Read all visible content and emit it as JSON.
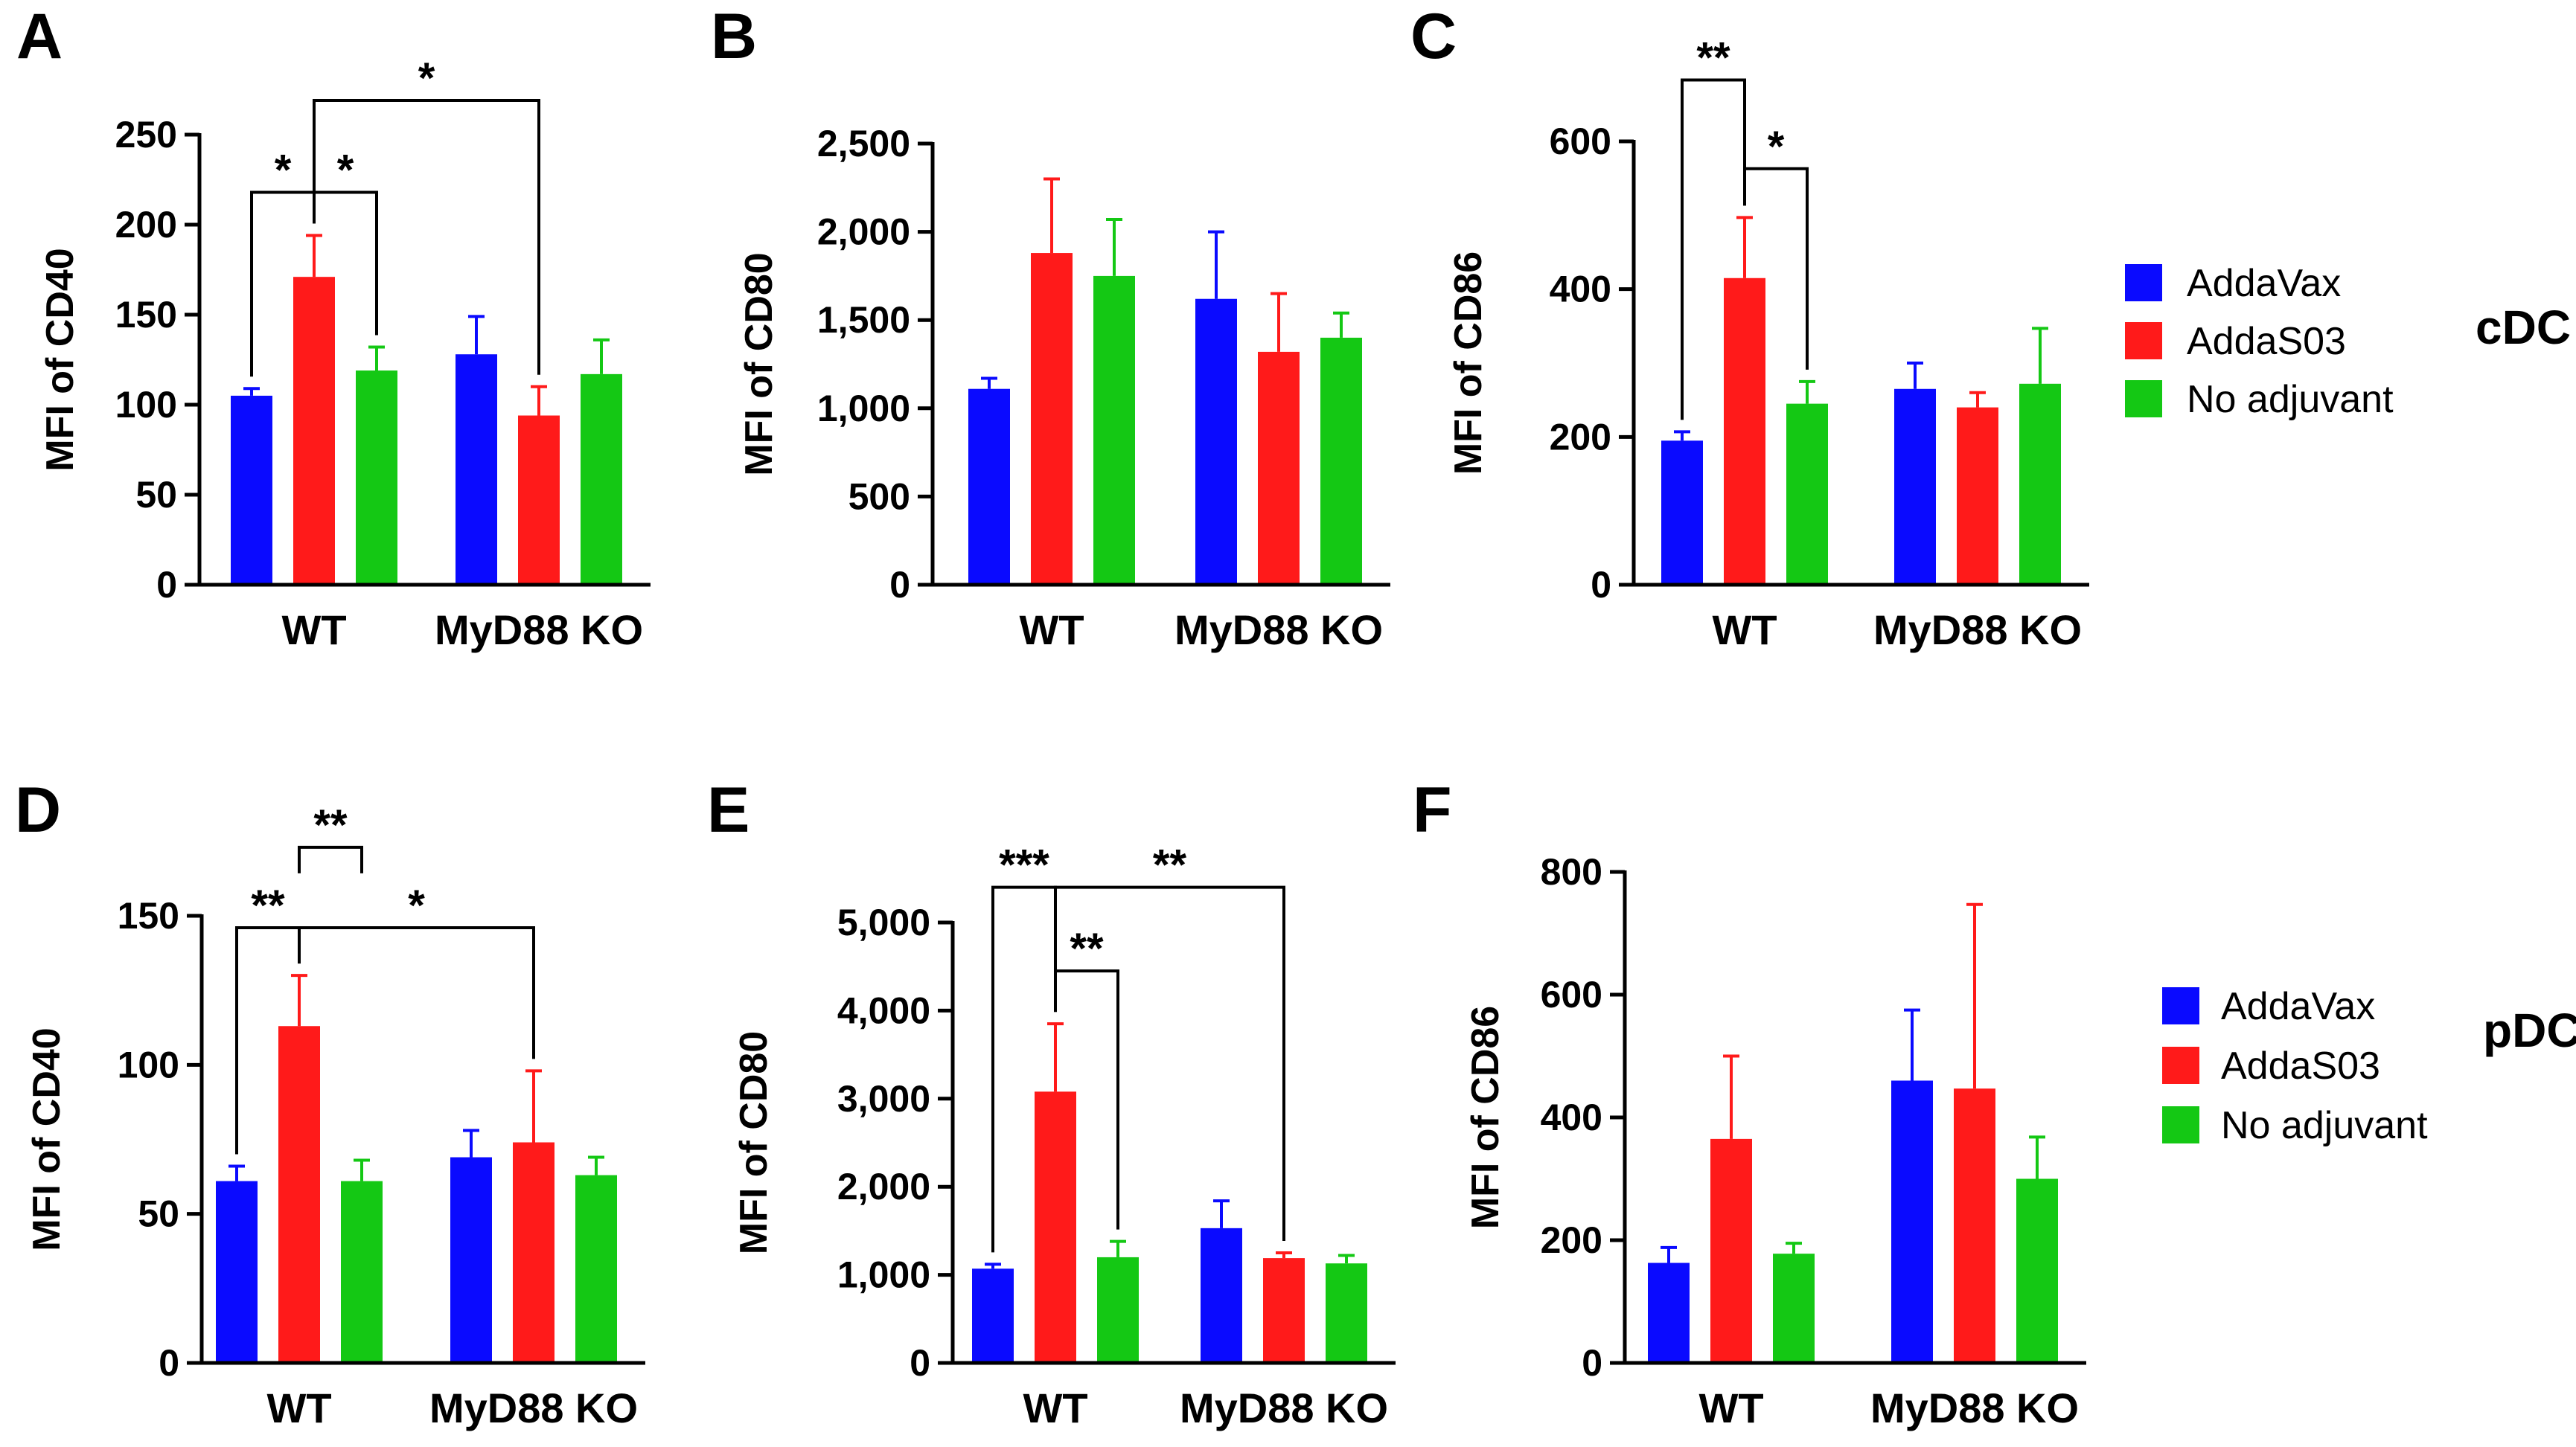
{
  "colors": {
    "AddaVax": "#0a0aff",
    "AddaS03": "#ff1a1a",
    "No adjuvant": "#14c814",
    "axis": "#000000"
  },
  "legend_rows": [
    {
      "label": "cDC",
      "entries": [
        "AddaVax",
        "AddaS03",
        "No adjuvant"
      ]
    },
    {
      "label": "pDC",
      "entries": [
        "AddaVax",
        "AddaS03",
        "No adjuvant"
      ]
    }
  ],
  "chart_data": [
    {
      "panel": "A",
      "type": "bar",
      "ylabel": "MFI of CD40",
      "ylim": [
        0,
        250
      ],
      "yticks": [
        "0",
        "50",
        "100",
        "150",
        "200",
        "250"
      ],
      "ytick_values": [
        0,
        50,
        100,
        150,
        200,
        250
      ],
      "categories": [
        "WT",
        "MyD88 KO"
      ],
      "series": [
        {
          "name": "AddaVax",
          "values": [
            105,
            128
          ],
          "errors": [
            4,
            21
          ]
        },
        {
          "name": "AddaS03",
          "values": [
            171,
            94
          ],
          "errors": [
            23,
            16
          ]
        },
        {
          "name": "No adjuvant",
          "values": [
            119,
            117
          ],
          "errors": [
            13,
            19
          ]
        }
      ],
      "annotations": [
        {
          "from": [
            0,
            0
          ],
          "to": [
            0,
            1
          ],
          "y": 218,
          "text": "*"
        },
        {
          "from": [
            0,
            1
          ],
          "to": [
            0,
            2
          ],
          "y": 218,
          "text": "*"
        },
        {
          "from": [
            0,
            1
          ],
          "to": [
            1,
            1
          ],
          "y": 269,
          "text": "*"
        }
      ]
    },
    {
      "panel": "B",
      "type": "bar",
      "ylabel": "MFI of CD80",
      "ylim": [
        0,
        2500
      ],
      "yticks": [
        "0",
        "500",
        "1,000",
        "1,500",
        "2,000",
        "2,500"
      ],
      "ytick_values": [
        0,
        500,
        1000,
        1500,
        2000,
        2500
      ],
      "categories": [
        "WT",
        "MyD88 KO"
      ],
      "series": [
        {
          "name": "AddaVax",
          "values": [
            1110,
            1620
          ],
          "errors": [
            60,
            380
          ]
        },
        {
          "name": "AddaS03",
          "values": [
            1880,
            1320
          ],
          "errors": [
            420,
            330
          ]
        },
        {
          "name": "No adjuvant",
          "values": [
            1750,
            1400
          ],
          "errors": [
            320,
            140
          ]
        }
      ],
      "annotations": []
    },
    {
      "panel": "C",
      "type": "bar",
      "ylabel": "MFI of CD86",
      "ylim": [
        0,
        600
      ],
      "yticks": [
        "0",
        "200",
        "400",
        "600"
      ],
      "ytick_values": [
        0,
        200,
        400,
        600
      ],
      "categories": [
        "WT",
        "MyD88 KO"
      ],
      "series": [
        {
          "name": "AddaVax",
          "values": [
            195,
            265
          ],
          "errors": [
            12,
            35
          ]
        },
        {
          "name": "AddaS03",
          "values": [
            415,
            240
          ],
          "errors": [
            82,
            20
          ]
        },
        {
          "name": "No adjuvant",
          "values": [
            245,
            272
          ],
          "errors": [
            30,
            75
          ]
        }
      ],
      "annotations": [
        {
          "from": [
            0,
            0
          ],
          "to": [
            0,
            1
          ],
          "y": 683,
          "text": "**"
        },
        {
          "from": [
            0,
            1
          ],
          "to": [
            0,
            2
          ],
          "y": 563,
          "text": "*"
        }
      ]
    },
    {
      "panel": "D",
      "type": "bar",
      "ylabel": "MFI of CD40",
      "ylim": [
        0,
        150
      ],
      "yticks": [
        "0",
        "50",
        "100",
        "150"
      ],
      "ytick_values": [
        0,
        50,
        100,
        150
      ],
      "categories": [
        "WT",
        "MyD88 KO"
      ],
      "series": [
        {
          "name": "AddaVax",
          "values": [
            61,
            69
          ],
          "errors": [
            5,
            9
          ]
        },
        {
          "name": "AddaS03",
          "values": [
            113,
            74
          ],
          "errors": [
            17,
            24
          ]
        },
        {
          "name": "No adjuvant",
          "values": [
            61,
            63
          ],
          "errors": [
            7,
            6
          ]
        }
      ],
      "annotations": [
        {
          "from": [
            0,
            0
          ],
          "to": [
            0,
            1
          ],
          "y": 146,
          "text": "**"
        },
        {
          "from": [
            0,
            1
          ],
          "to": [
            0,
            2
          ],
          "y": 173,
          "text": "**",
          "down": true
        },
        {
          "from": [
            0,
            1
          ],
          "to": [
            1,
            1
          ],
          "y": 146,
          "text": "*"
        }
      ]
    },
    {
      "panel": "E",
      "type": "bar",
      "ylabel": "MFI of CD80",
      "ylim": [
        0,
        5000
      ],
      "yticks": [
        "0",
        "1,000",
        "2,000",
        "3,000",
        "4,000",
        "5,000"
      ],
      "ytick_values": [
        0,
        1000,
        2000,
        3000,
        4000,
        5000
      ],
      "categories": [
        "WT",
        "MyD88 KO"
      ],
      "series": [
        {
          "name": "AddaVax",
          "values": [
            1070,
            1530
          ],
          "errors": [
            50,
            310
          ]
        },
        {
          "name": "AddaS03",
          "values": [
            3080,
            1190
          ],
          "errors": [
            770,
            60
          ]
        },
        {
          "name": "No adjuvant",
          "values": [
            1200,
            1130
          ],
          "errors": [
            180,
            90
          ]
        }
      ],
      "annotations": [
        {
          "from": [
            0,
            0
          ],
          "to": [
            0,
            1
          ],
          "y": 5400,
          "text": "***"
        },
        {
          "from": [
            0,
            1
          ],
          "to": [
            1,
            1
          ],
          "y": 5400,
          "text": "**"
        },
        {
          "from": [
            0,
            1
          ],
          "to": [
            0,
            2
          ],
          "y": 4450,
          "text": "**"
        }
      ]
    },
    {
      "panel": "F",
      "type": "bar",
      "ylabel": "MFI of CD86",
      "ylim": [
        0,
        800
      ],
      "yticks": [
        "0",
        "200",
        "400",
        "600",
        "800"
      ],
      "ytick_values": [
        0,
        200,
        400,
        600,
        800
      ],
      "categories": [
        "WT",
        "MyD88 KO"
      ],
      "series": [
        {
          "name": "AddaVax",
          "values": [
            163,
            460
          ],
          "errors": [
            25,
            115
          ]
        },
        {
          "name": "AddaS03",
          "values": [
            365,
            447
          ],
          "errors": [
            135,
            300
          ]
        },
        {
          "name": "No adjuvant",
          "values": [
            178,
            300
          ],
          "errors": [
            17,
            68
          ]
        }
      ],
      "annotations": []
    }
  ]
}
